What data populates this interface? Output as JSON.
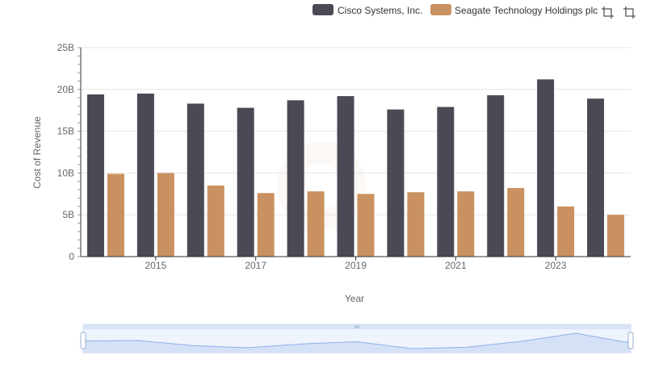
{
  "colors": {
    "cisco": "#4a4a55",
    "seagate": "#c9915f",
    "grid": "#e6e6e6",
    "axis": "#333333",
    "zoom_fill": "#d5e1f7",
    "zoom_line": "#8fb0e8"
  },
  "toolbar": {
    "icons": [
      "crop-icon",
      "crop-alt-icon"
    ]
  },
  "chart_data": {
    "type": "bar",
    "title": "",
    "xlabel": "Year",
    "ylabel": "Cost of Revenue",
    "categories": [
      "2014",
      "2015",
      "2016",
      "2017",
      "2018",
      "2019",
      "2020",
      "2021",
      "2022",
      "2023",
      "2024"
    ],
    "x_tick_labels": [
      "2015",
      "2017",
      "2019",
      "2021",
      "2023"
    ],
    "y_tick_labels": [
      "0",
      "5B",
      "10B",
      "15B",
      "20B",
      "25B"
    ],
    "ylim": [
      0,
      25000000000
    ],
    "grid": true,
    "legend_position": "top-right",
    "series": [
      {
        "name": "Cisco Systems, Inc.",
        "color_key": "cisco",
        "values": [
          19400000000,
          19500000000,
          18300000000,
          17800000000,
          18700000000,
          19200000000,
          17600000000,
          17900000000,
          19300000000,
          21200000000,
          18900000000
        ]
      },
      {
        "name": "Seagate Technology Holdings plc",
        "color_key": "seagate",
        "values": [
          9900000000,
          10000000000,
          8500000000,
          7600000000,
          7800000000,
          7500000000,
          7700000000,
          7800000000,
          8200000000,
          6000000000,
          5000000000
        ]
      }
    ]
  }
}
